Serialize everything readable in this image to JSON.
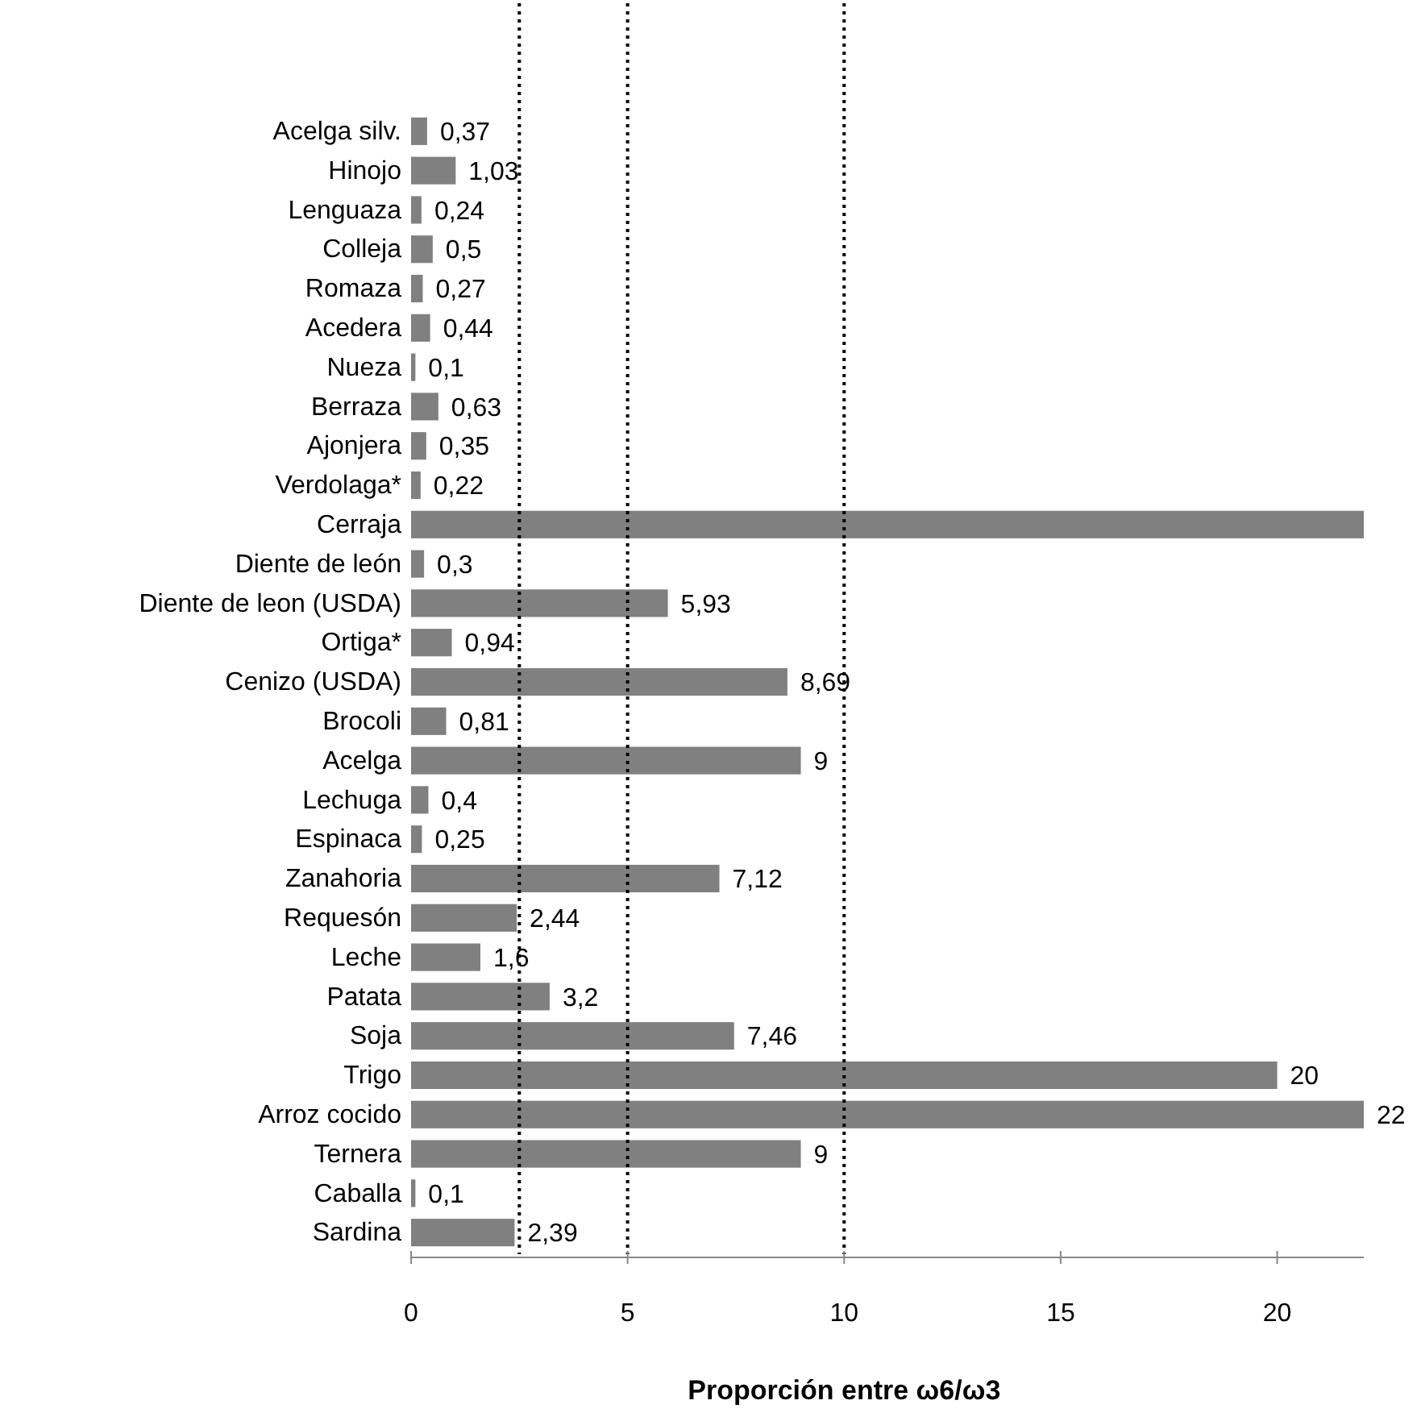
{
  "chart_data": {
    "type": "bar",
    "orientation": "horizontal",
    "xlabel": "Proporción entre ω6/ω3",
    "categories": [
      "Acelga silv.",
      "Hinojo",
      "Lenguaza",
      "Colleja",
      "Romaza",
      "Acedera",
      "Nueza",
      "Berraza",
      "Ajonjera",
      "Verdolaga*",
      "Cerraja",
      "Diente de león",
      "Diente de leon (USDA)",
      "Ortiga*",
      "Cenizo (USDA)",
      "Brocoli",
      "Acelga",
      "Lechuga",
      "Espinaca",
      "Zanahoria",
      "Requesón",
      "Leche",
      "Patata",
      "Soja",
      "Trigo",
      "Arroz cocido",
      "Ternera",
      "Caballa",
      "Sardina"
    ],
    "values": [
      0.37,
      1.03,
      0.24,
      0.5,
      0.27,
      0.44,
      0.1,
      0.63,
      0.35,
      0.22,
      22,
      0.3,
      5.93,
      0.94,
      8.69,
      0.81,
      9,
      0.4,
      0.25,
      7.12,
      2.44,
      1.6,
      3.2,
      7.46,
      20,
      22,
      9,
      0.1,
      2.39
    ],
    "value_labels": [
      "0,37",
      "1,03",
      "0,24",
      "0,5",
      "0,27",
      "0,44",
      "0,1",
      "0,63",
      "0,35",
      "0,22",
      null,
      "0,3",
      "5,93",
      "0,94",
      "8,69",
      "0,81",
      "9",
      "0,4",
      "0,25",
      "7,12",
      "2,44",
      "1,6",
      "3,2",
      "7,46",
      "20",
      "22",
      "9",
      "0,1",
      "2,39"
    ],
    "color": "#808080",
    "xlim": [
      0,
      22
    ],
    "xticks": [
      0,
      5,
      10,
      15,
      20
    ],
    "grid": false,
    "ref_lines": [
      {
        "axis": "x",
        "value": 2.5,
        "line_style": "dotted",
        "color": "#000000"
      },
      {
        "axis": "x",
        "value": 5,
        "line_style": "dotted",
        "color": "#000000"
      },
      {
        "axis": "x",
        "value": 10,
        "line_style": "dotted",
        "color": "#000000"
      }
    ]
  }
}
